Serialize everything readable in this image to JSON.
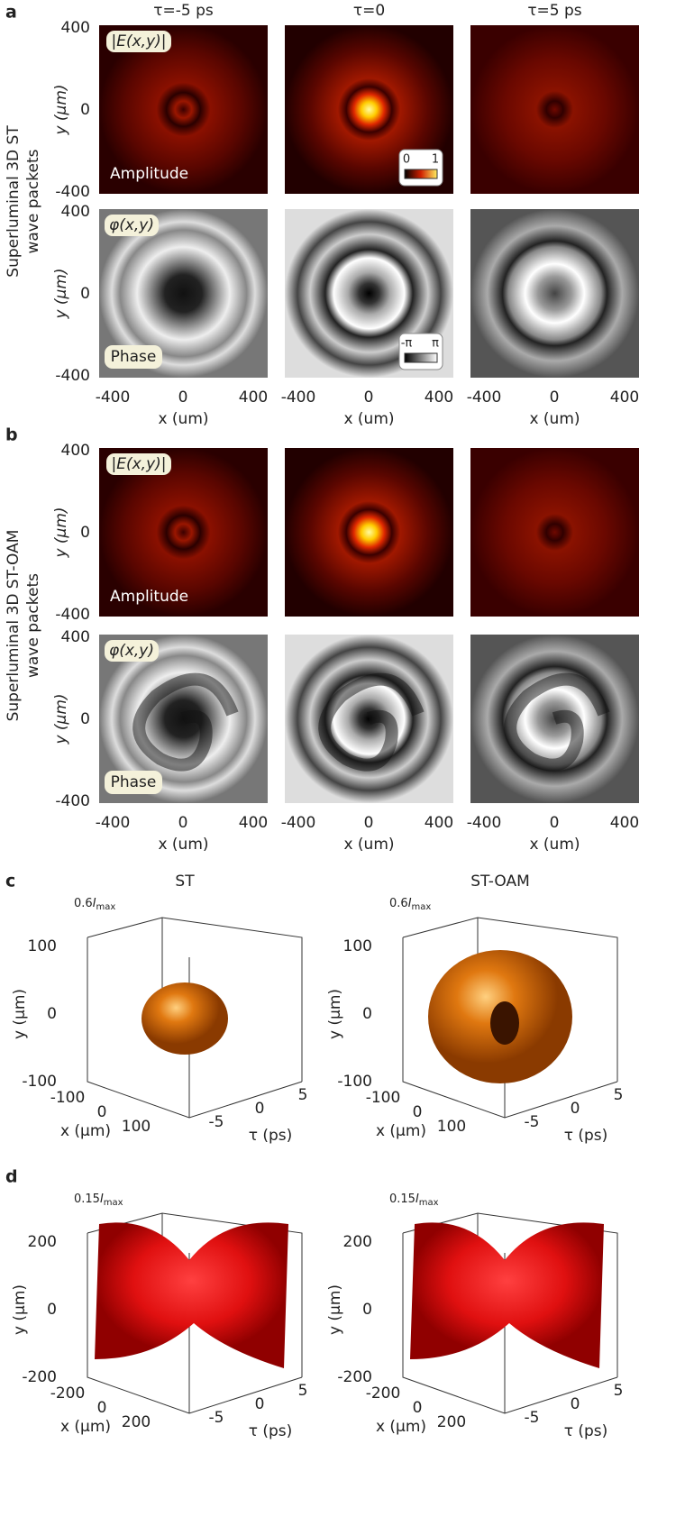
{
  "columns": [
    "τ=-5 ps",
    "τ=0",
    "τ=5 ps"
  ],
  "image_axes": {
    "y_label": "y (μm)",
    "x_label": "x (um)",
    "y_ticks": [
      400,
      0,
      -400
    ],
    "x_ticks": [
      -400,
      0,
      400
    ]
  },
  "sections": [
    {
      "label": "a",
      "row_label": [
        "Superluminal 3D ST",
        "wave packets"
      ]
    },
    {
      "label": "b",
      "row_label": [
        "Superluminal 3D ST-OAM",
        "wave packets"
      ]
    }
  ],
  "insets": {
    "amplitude": "|E(x,y)|",
    "amplitude_tag": "Amplitude",
    "phase": "φ(x,y)",
    "phase_tag": "Phase",
    "amplitude_scale": [
      0,
      1
    ],
    "phase_scale": [
      "-π",
      "π"
    ]
  },
  "panel_c": {
    "label": "c",
    "titles": [
      "ST",
      "ST-OAM"
    ],
    "threshold": 0.6,
    "symbol": "I",
    "subscript": "max",
    "y_ticks": [
      100,
      0,
      -100
    ],
    "x_ticks": [
      -100,
      0,
      100
    ],
    "tau_ticks": [
      -5,
      0,
      5
    ],
    "y_label": "y (μm)",
    "x_label": "x (μm)",
    "tau_label": "τ (ps)"
  },
  "panel_d": {
    "label": "d",
    "threshold": 0.15,
    "symbol": "I",
    "subscript": "max",
    "y_ticks": [
      200,
      0,
      -200
    ],
    "x_ticks": [
      -200,
      0,
      200
    ],
    "tau_ticks": [
      -5,
      0,
      5
    ],
    "y_label": "y (μm)",
    "x_label": "x (μm)",
    "tau_label": "τ (ps)"
  }
}
